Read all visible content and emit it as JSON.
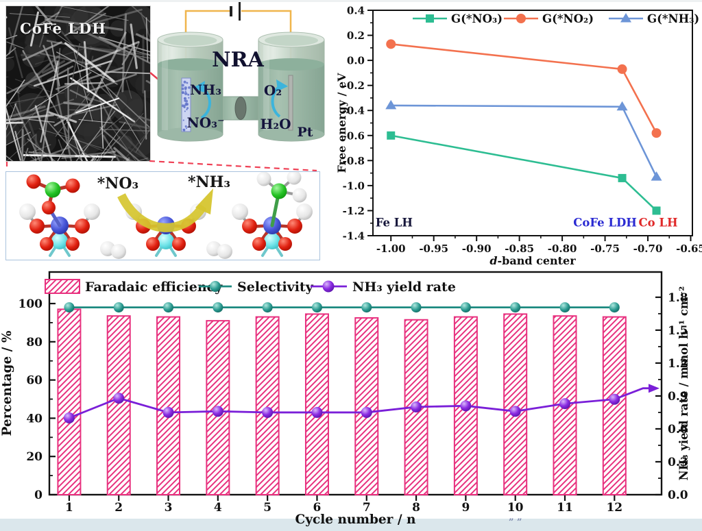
{
  "figure": {
    "sem": {
      "label": "CoFe LDH"
    },
    "schematic": {
      "title": "NRA",
      "anode_product": "NH₃",
      "anode_reactant": "NO₃⁻",
      "cathode_product": "O₂",
      "cathode_reactant": "H₂O",
      "cathode_electrode": "Pt"
    },
    "mechanism": {
      "reactant_label": "*NO₃",
      "product_label": "*NH₃"
    },
    "footer_fragment": "” ”"
  },
  "chart_data": [
    {
      "id": "free_energy",
      "type": "line",
      "title": "",
      "xlabel": "d-band center",
      "xlabel_italic_first": true,
      "ylabel": "Free energy / eV",
      "xlim": [
        -1.021,
        -0.648
      ],
      "ylim": [
        -1.4,
        0.4
      ],
      "xtick_labels": [
        "-1.00",
        "-0.95",
        "-0.90",
        "-0.85",
        "-0.80",
        "-0.75",
        "-0.70",
        "-0.65"
      ],
      "ytick_labels": [
        "0.4",
        "0.2",
        "0.0",
        "-0.2",
        "-0.4",
        "-0.6",
        "-0.8",
        "-1.0",
        "-1.2",
        "-1.4"
      ],
      "grid": false,
      "legend_position": "top-inside",
      "series": [
        {
          "name": "G(*NO₃)",
          "marker": "square",
          "color": "#2dbd92",
          "x": [
            -1.0,
            -0.73,
            -0.69
          ],
          "y": [
            -0.6,
            -0.94,
            -1.2
          ]
        },
        {
          "name": "G(*NO₂)",
          "marker": "circle",
          "color": "#f3714e",
          "x": [
            -1.0,
            -0.73,
            -0.69
          ],
          "y": [
            0.13,
            -0.07,
            -0.58
          ]
        },
        {
          "name": "G(*NH₃)",
          "marker": "triangle",
          "color": "#6d95d7",
          "x": [
            -1.0,
            -0.73,
            -0.69
          ],
          "y": [
            -0.36,
            -0.37,
            -0.93
          ]
        }
      ],
      "annotations": [
        {
          "text": "Fe LH",
          "color": "#16163a",
          "x": -1.018,
          "y": -1.3,
          "anchor": "start"
        },
        {
          "text": "CoFe LDH",
          "color": "#2a2ad2",
          "x": -0.75,
          "y": -1.3,
          "anchor": "middle"
        },
        {
          "text": "Co LH",
          "color": "#e02828",
          "x": -0.688,
          "y": -1.3,
          "anchor": "middle"
        }
      ]
    },
    {
      "id": "cycling_stability",
      "type": "bar",
      "title": "",
      "xlabel": "Cycle number / n",
      "ylabel_left": "Percentage / %",
      "ylabel_right": "NH₃ yield rate / mmol h⁻¹ cm⁻²",
      "categories": [
        1,
        2,
        3,
        4,
        5,
        6,
        7,
        8,
        9,
        10,
        11,
        12
      ],
      "ylim_left": [
        0,
        116.5
      ],
      "ylim_right": [
        0,
        2.03
      ],
      "ytick_labels_left": [
        "0",
        "20",
        "40",
        "60",
        "80",
        "100"
      ],
      "ytick_labels_right": [
        "0.0",
        "0.3",
        "0.6",
        "0.9",
        "1.2",
        "1.5",
        "1.8"
      ],
      "grid": false,
      "legend_position": "top-inside",
      "series": [
        {
          "name": "Faradaic efficiency",
          "type": "bar",
          "axis": "left",
          "color": "#e8307e",
          "values": [
            97,
            93.5,
            93,
            91,
            93,
            94.5,
            92.5,
            91.5,
            93,
            94.5,
            93.5,
            93
          ]
        },
        {
          "name": "Selectivity",
          "type": "line-sphere",
          "axis": "left",
          "color": "#1d8a80",
          "values": [
            98,
            98,
            98,
            98,
            98,
            98,
            98,
            98,
            98,
            98,
            98,
            98
          ]
        },
        {
          "name": "NH₃ yield rate",
          "type": "line-sphere",
          "axis": "right",
          "color": "#7a1fd8",
          "values": [
            0.7,
            0.88,
            0.75,
            0.76,
            0.75,
            0.75,
            0.75,
            0.8,
            0.81,
            0.76,
            0.83,
            0.87
          ],
          "end_arrow_value": 0.97
        }
      ]
    }
  ]
}
